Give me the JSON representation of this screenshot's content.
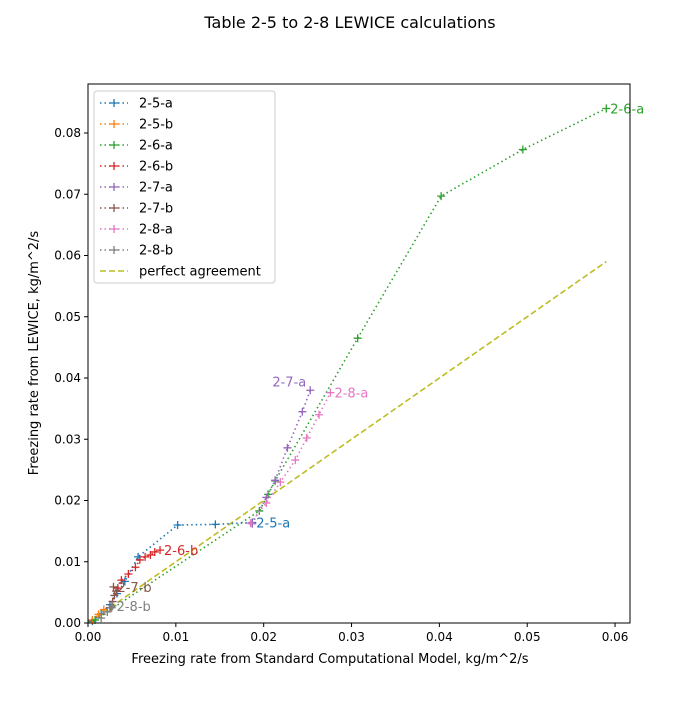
{
  "chart_data": {
    "type": "line",
    "title": "Table 2-5 to 2-8 LEWICE calculations",
    "xlabel": "Freezing rate from Standard Computational Model, kg/m^2/s",
    "ylabel": "Freezing rate from LEWICE, kg/m^2/s",
    "xlim": [
      0,
      0.0617
    ],
    "ylim": [
      0,
      0.088
    ],
    "xticks": [
      "0.00",
      "0.01",
      "0.02",
      "0.03",
      "0.04",
      "0.05",
      "0.06"
    ],
    "yticks": [
      "0.00",
      "0.01",
      "0.02",
      "0.03",
      "0.04",
      "0.05",
      "0.06",
      "0.07",
      "0.08"
    ],
    "grid": false,
    "legend_position": "top-left",
    "series": [
      {
        "name": "2-5-a",
        "color": "#1f77b4",
        "label": "2-5-a",
        "points": [
          [
            0.0005,
            0.0003
          ],
          [
            0.0015,
            0.0015
          ],
          [
            0.0025,
            0.003
          ],
          [
            0.0033,
            0.0048
          ],
          [
            0.0042,
            0.0068
          ],
          [
            0.0057,
            0.0108
          ],
          [
            0.0102,
            0.016
          ],
          [
            0.0145,
            0.0161
          ],
          [
            0.0187,
            0.0164
          ]
        ]
      },
      {
        "name": "2-5-b",
        "color": "#ff7f0e",
        "label": "",
        "points": [
          [
            0.0005,
            0.0005
          ],
          [
            0.0012,
            0.0014
          ],
          [
            0.0018,
            0.0022
          ]
        ]
      },
      {
        "name": "2-6-a",
        "color": "#2ca02c",
        "label": "2-6-a",
        "points": [
          [
            0.0008,
            0.0005
          ],
          [
            0.0195,
            0.0183
          ],
          [
            0.0205,
            0.021
          ],
          [
            0.0213,
            0.0232
          ],
          [
            0.0307,
            0.0465
          ],
          [
            0.0402,
            0.0697
          ],
          [
            0.0495,
            0.0773
          ],
          [
            0.059,
            0.084
          ]
        ]
      },
      {
        "name": "2-6-b",
        "color": "#d62728",
        "label": "2-6-b",
        "points": [
          [
            0.0034,
            0.0057
          ],
          [
            0.0038,
            0.007
          ],
          [
            0.0046,
            0.008
          ],
          [
            0.0054,
            0.0091
          ],
          [
            0.0059,
            0.0103
          ],
          [
            0.0065,
            0.0108
          ],
          [
            0.0071,
            0.0111
          ],
          [
            0.0076,
            0.0116
          ],
          [
            0.0082,
            0.0119
          ]
        ]
      },
      {
        "name": "2-7-a",
        "color": "#9467bd",
        "label": "2-7-a",
        "points": [
          [
            0.0187,
            0.0162
          ],
          [
            0.0203,
            0.0205
          ],
          [
            0.0213,
            0.0233
          ],
          [
            0.0227,
            0.0286
          ],
          [
            0.0244,
            0.0345
          ],
          [
            0.0253,
            0.038
          ]
        ]
      },
      {
        "name": "2-7-b",
        "color": "#8c564b",
        "label": "2-7-b",
        "points": [
          [
            0.0025,
            0.0025
          ],
          [
            0.0028,
            0.0035
          ],
          [
            0.003,
            0.0045
          ],
          [
            0.0032,
            0.0052
          ],
          [
            0.0029,
            0.0059
          ]
        ]
      },
      {
        "name": "2-8-a",
        "color": "#e377c2",
        "label": "2-8-a",
        "points": [
          [
            0.0185,
            0.0163
          ],
          [
            0.0203,
            0.0196
          ],
          [
            0.0219,
            0.023
          ],
          [
            0.0236,
            0.0266
          ],
          [
            0.0249,
            0.0302
          ],
          [
            0.0263,
            0.034
          ],
          [
            0.0276,
            0.0376
          ]
        ]
      },
      {
        "name": "2-8-b",
        "color": "#7f7f7f",
        "label": "2-8-b",
        "points": [
          [
            0.0015,
            0.0008
          ],
          [
            0.0022,
            0.0018
          ],
          [
            0.0027,
            0.0025
          ],
          [
            0.0028,
            0.0028
          ]
        ]
      }
    ],
    "reference_line": {
      "name": "perfect agreement",
      "color": "#bcbd22",
      "points": [
        [
          0,
          0
        ],
        [
          0.059,
          0.059
        ]
      ]
    }
  }
}
